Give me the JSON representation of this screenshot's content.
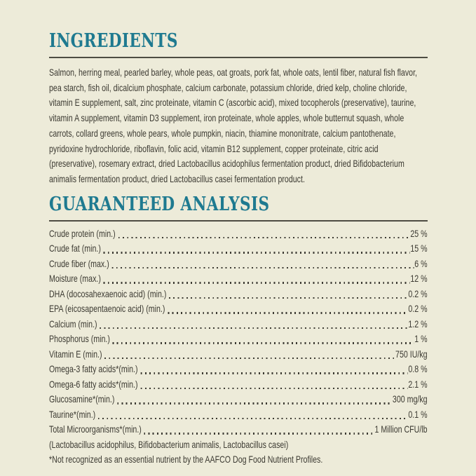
{
  "ingredients": {
    "heading": "INGREDIENTS",
    "text": "Salmon, herring meal, pearled barley, whole peas, oat groats, pork fat, whole oats, lentil fiber, natural fish flavor, pea starch, fish oil, dicalcium phosphate, calcium carbonate, potassium chloride, dried kelp, choline chloride, vitamin E supplement, salt, zinc proteinate, vitamin C (ascorbic acid), mixed tocopherols (preservative), taurine, vitamin A supplement, vitamin D3 supplement, iron proteinate, whole apples, whole butternut squash, whole carrots, collard greens, whole pears, whole pumpkin, niacin, thiamine mononitrate, calcium pantothenate, pyridoxine hydrochloride, riboflavin, folic acid, vitamin B12 supplement, copper proteinate, citric acid (preservative), rosemary extract, dried Lactobacillus acidophilus fermentation product, dried Bifidobacterium animalis fermentation product, dried Lactobacillus casei fermentation product."
  },
  "guaranteed_analysis": {
    "heading": "GUARANTEED ANALYSIS",
    "rows": [
      {
        "label": "Crude protein (min.)",
        "value": "25 %"
      },
      {
        "label": "Crude fat (min.)",
        "value": "15 %"
      },
      {
        "label": "Crude fiber (max.)",
        "value": "6 %"
      },
      {
        "label": "Moisture (max.)",
        "value": "12 %"
      },
      {
        "label": "DHA (docosahexaenoic acid) (min.)",
        "value": "0.2 %"
      },
      {
        "label": "EPA (eicosapentaenoic acid) (min.)",
        "value": "0.2 %"
      },
      {
        "label": "Calcium (min.)",
        "value": "1.2 %"
      },
      {
        "label": "Phosphorus (min.)",
        "value": "1 %"
      },
      {
        "label": "Vitamin E (min.)",
        "value": "750 IU/kg"
      },
      {
        "label": "Omega-3 fatty acids*(min.)",
        "value": "0.8 %"
      },
      {
        "label": "Omega-6 fatty acids*(min.)",
        "value": "2.1 %"
      },
      {
        "label": "Glucosamine*(min.)",
        "value": "300 mg/kg"
      },
      {
        "label": "Taurine*(min.)",
        "value": "0.1 %"
      },
      {
        "label": "Total Microorganisms*(min.)",
        "value": "1 Million CFU/lb"
      }
    ],
    "microorganisms_detail": "(Lactobacillus acidophilus, Bifidobacterium animalis, Lactobacillus casei)",
    "footnote": "*Not recognized as an essential nutrient by the AAFCO Dog Food Nutrient Profiles."
  },
  "colors": {
    "background": "#edebd9",
    "heading_teal": "#1f7a90",
    "body_text": "#3c3a32",
    "rule": "#4d4c42"
  }
}
